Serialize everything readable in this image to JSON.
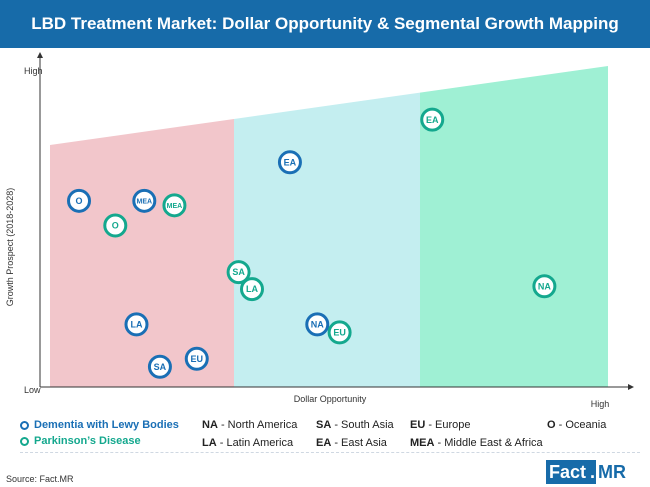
{
  "title": "LBD Treatment Market: Dollar Opportunity & Segmental Growth Mapping",
  "source": "Source: Fact.MR",
  "logo": {
    "part1": "Fact",
    "dot": ".",
    "part2": "MR"
  },
  "chart_data": {
    "type": "scatter",
    "xlabel": "Dollar Opportunity",
    "ylabel": "Growth Prospect (2018-2028)",
    "x_low_label": "",
    "x_high_label": "High",
    "y_low_label": "Low",
    "y_high_label": "High",
    "xlim": [
      0,
      100
    ],
    "ylim": [
      0,
      100
    ],
    "grid": false,
    "colors": {
      "dementia": "#1a6fb5",
      "parkinsons": "#14a88e",
      "zone1": "#f2c6cb",
      "zone2": "#c4eef0",
      "zone3": "#9ff0d4"
    },
    "series": [
      {
        "name": "Dementia with Lewy Bodies",
        "color": "#1a6fb5",
        "points": [
          {
            "label": "O",
            "x": 5.2,
            "y": 58
          },
          {
            "label": "MEA",
            "x": 16.9,
            "y": 58
          },
          {
            "label": "EA",
            "x": 43,
            "y": 70
          },
          {
            "label": "LA",
            "x": 15.5,
            "y": 19.5
          },
          {
            "label": "SA",
            "x": 19.7,
            "y": 6.3
          },
          {
            "label": "EU",
            "x": 26.3,
            "y": 8.8
          },
          {
            "label": "NA",
            "x": 47.9,
            "y": 19.5
          }
        ]
      },
      {
        "name": "Parkinson’s Disease",
        "color": "#14a88e",
        "points": [
          {
            "label": "MEA",
            "x": 22.3,
            "y": 56.6
          },
          {
            "label": "O",
            "x": 11.7,
            "y": 50.3
          },
          {
            "label": "SA",
            "x": 33.8,
            "y": 35.8
          },
          {
            "label": "LA",
            "x": 36.2,
            "y": 30.5
          },
          {
            "label": "EU",
            "x": 51.9,
            "y": 17
          },
          {
            "label": "EA",
            "x": 68.5,
            "y": 83.3
          },
          {
            "label": "NA",
            "x": 88.6,
            "y": 31.4
          }
        ]
      }
    ]
  },
  "legend_abbr": [
    {
      "code": "NA",
      "text": " - North America"
    },
    {
      "code": "SA",
      "text": " - South Asia"
    },
    {
      "code": "EU",
      "text": " - Europe"
    },
    {
      "code": "O",
      "text": " - Oceania"
    },
    {
      "code": "LA",
      "text": " - Latin America"
    },
    {
      "code": "EA",
      "text": " - East Asia"
    },
    {
      "code": "MEA",
      "text": " - Middle East & Africa"
    }
  ]
}
